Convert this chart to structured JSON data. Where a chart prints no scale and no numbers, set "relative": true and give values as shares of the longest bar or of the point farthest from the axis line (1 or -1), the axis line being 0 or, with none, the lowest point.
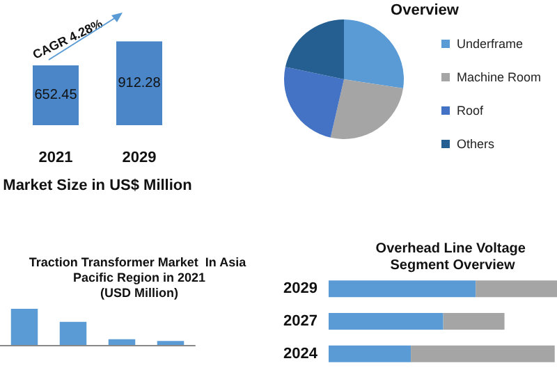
{
  "chart_data": [
    {
      "type": "bar",
      "categories": [
        "2021",
        "2029"
      ],
      "values": [
        652.45,
        912.28
      ],
      "color": "#4a86c8",
      "data_labels": true,
      "xlabel": "Market Size in US$ Million",
      "annotations": [
        "CAGR 4.28%"
      ]
    },
    {
      "type": "pie",
      "title": "Overview",
      "categories": [
        "Underframe",
        "Machine Room",
        "Roof",
        "Others"
      ],
      "values": [
        27.4,
        26.2,
        24.7,
        21.7
      ],
      "colors": [
        "#5b9bd5",
        "#a5a5a5",
        "#4472c4",
        "#255e91"
      ],
      "legend": "right"
    },
    {
      "type": "bar",
      "title": "Traction Transformer Market  In Asia Pacific Region in 2021",
      "subtitle": "(USD Million)",
      "categories": [
        null,
        null,
        null,
        null
      ],
      "values": [
        1,
        0.64,
        0.16,
        0.11
      ],
      "color": "#5b9bd5",
      "relative": true
    },
    {
      "type": "bar",
      "title": "Overhead Line Voltage Segment Overview",
      "orientation": "horizontal",
      "stacked": true,
      "relative": true,
      "categories": [
        "2029",
        "2027",
        "2024"
      ],
      "series": [
        {
          "color": "#5b9bd5",
          "values": [
            0.644,
            0.502,
            0.36
          ]
        },
        {
          "color": "#a5a5a5",
          "values": [
            0.356,
            0.268,
            0.63
          ]
        }
      ]
    }
  ]
}
